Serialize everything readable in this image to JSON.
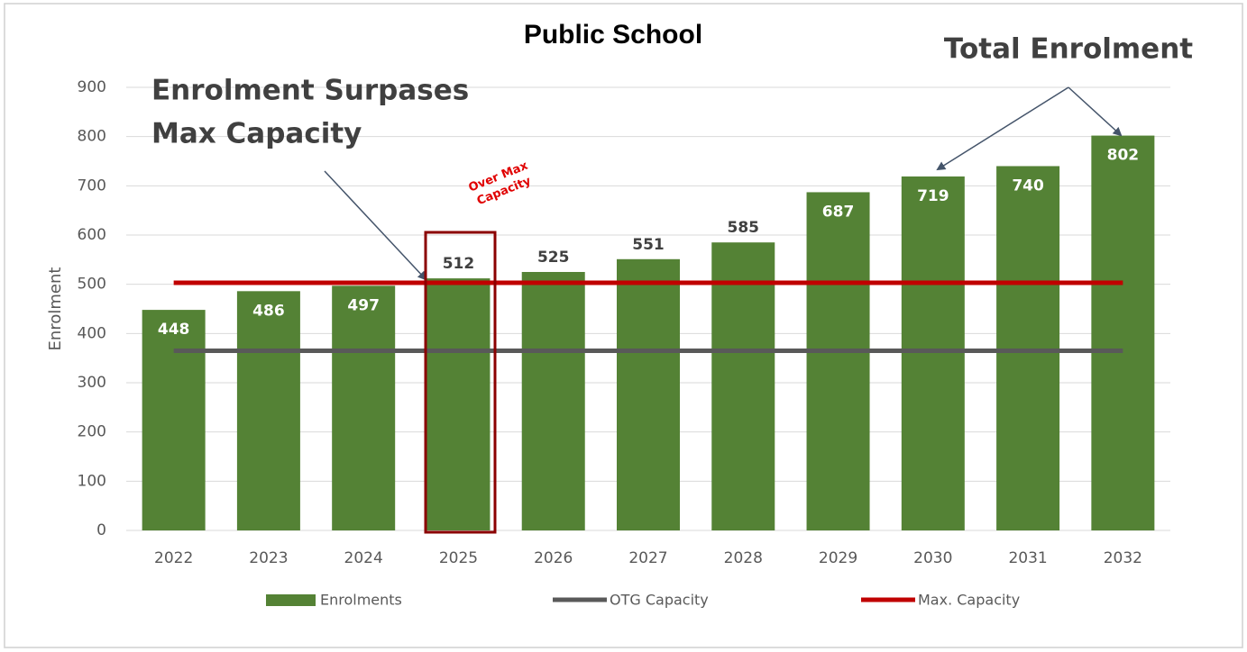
{
  "chart_data": {
    "type": "bar",
    "title": "Public School",
    "y_label": "Enrolment",
    "annotations": [
      "Total Enrolment",
      "Enrolment Surpases",
      "Max Capacity",
      "Over Max",
      "Capacity"
    ],
    "categories": [
      "2022",
      "2023",
      "2024",
      "2025",
      "2026",
      "2027",
      "2028",
      "2029",
      "2030",
      "2031",
      "2032"
    ],
    "series": [
      {
        "name": "Enrolments",
        "type": "bar",
        "color": "#548235",
        "values": [
          448,
          486,
          497,
          512,
          525,
          551,
          585,
          687,
          719,
          740,
          802
        ]
      },
      {
        "name": "OTG Capacity",
        "type": "line",
        "color": "#595959",
        "values": [
          365,
          365,
          365,
          365,
          365,
          365,
          365,
          365,
          365,
          365,
          365
        ]
      },
      {
        "name": "Max. Capacity",
        "type": "line",
        "color": "#c00000",
        "values": [
          503,
          503,
          503,
          503,
          503,
          503,
          503,
          503,
          503,
          503,
          503
        ]
      }
    ],
    "ylim": [
      0,
      900
    ],
    "yticks": [
      0,
      100,
      200,
      300,
      400,
      500,
      600,
      700,
      800,
      900
    ],
    "grid": true,
    "legend": "bottom"
  }
}
